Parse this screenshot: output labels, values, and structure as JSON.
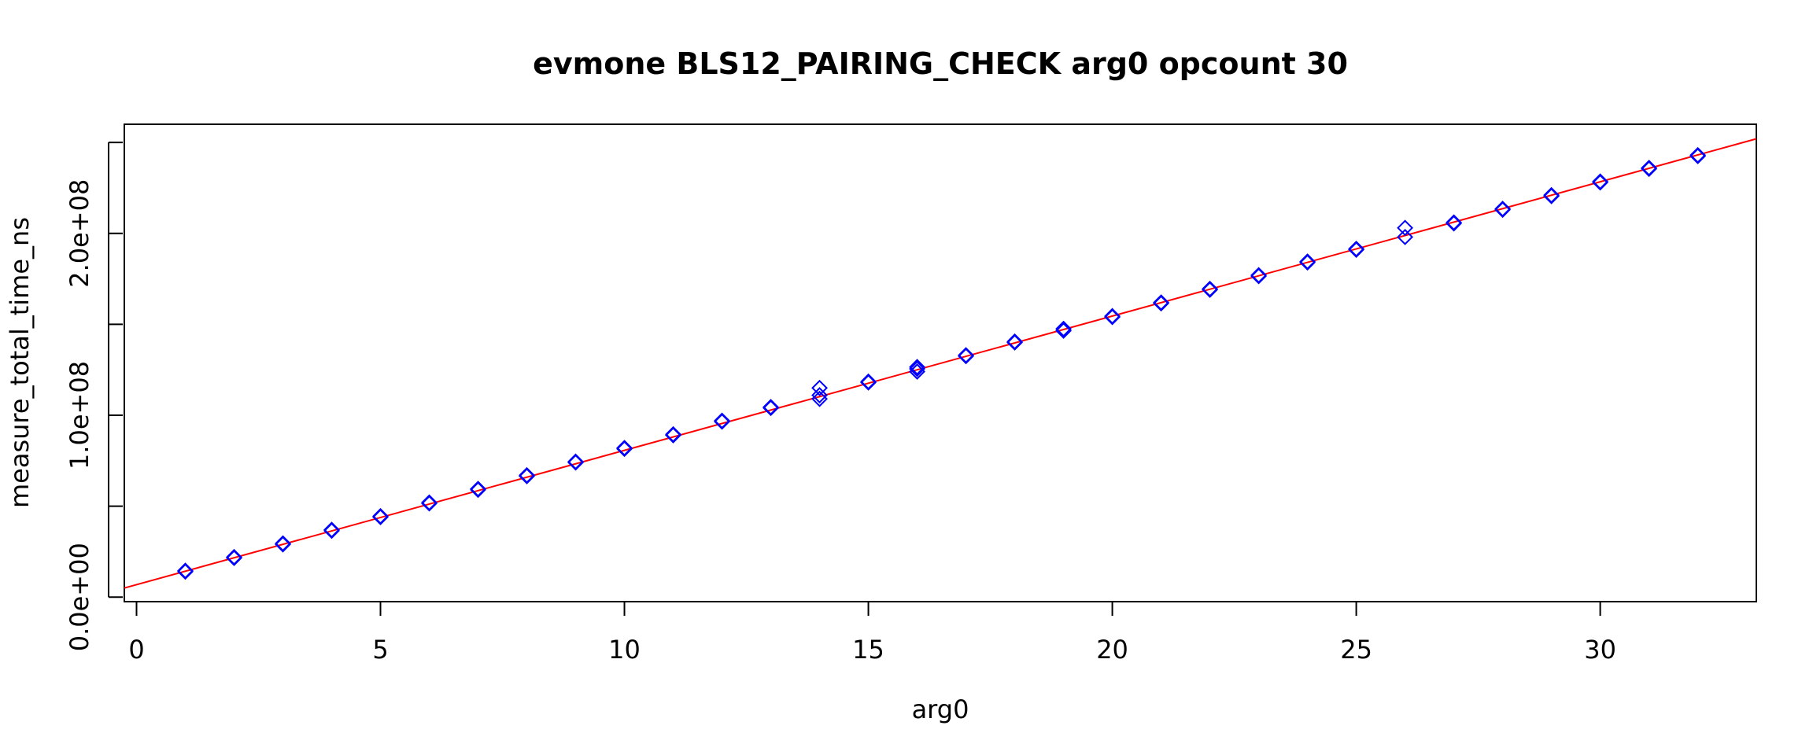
{
  "chart_data": {
    "type": "scatter",
    "title": "evmone BLS12_PAIRING_CHECK arg0 opcount 30",
    "xlabel": "arg0",
    "ylabel": "measure_total_time_ns",
    "xlim": [
      -0.25,
      33.2
    ],
    "ylim": [
      -2500000.0,
      260000000.0
    ],
    "x_ticks": [
      0,
      5,
      10,
      15,
      20,
      25,
      30
    ],
    "x_tick_labels": [
      "0",
      "5",
      "10",
      "15",
      "20",
      "25",
      "30"
    ],
    "y_ticks": [
      0,
      50000000,
      100000000,
      150000000,
      200000000,
      250000000
    ],
    "y_tick_labels": [
      "0.0e+00",
      "",
      "1.0e+08",
      "",
      "2.0e+08",
      ""
    ],
    "grid": false,
    "series": [
      {
        "marker": "diamond",
        "color": "#0000ff",
        "points": [
          [
            1,
            14500000
          ],
          [
            1,
            14000000
          ],
          [
            2,
            22000000
          ],
          [
            2,
            21500000
          ],
          [
            3,
            29500000
          ],
          [
            3,
            29000000
          ],
          [
            4,
            37000000
          ],
          [
            4,
            36500000
          ],
          [
            5,
            44500000
          ],
          [
            5,
            44000000
          ],
          [
            6,
            52000000
          ],
          [
            6,
            51500000
          ],
          [
            7,
            59500000
          ],
          [
            7,
            59000000
          ],
          [
            8,
            67000000
          ],
          [
            8,
            66500000
          ],
          [
            9,
            74500000
          ],
          [
            9,
            74000000
          ],
          [
            10,
            82000000
          ],
          [
            10,
            81500000
          ],
          [
            11,
            89500000
          ],
          [
            11,
            89000000
          ],
          [
            12,
            97000000
          ],
          [
            12,
            96500000
          ],
          [
            13,
            104500000
          ],
          [
            13,
            104000000
          ],
          [
            14,
            115000000
          ],
          [
            14,
            109000000
          ],
          [
            14,
            111000000
          ],
          [
            15,
            118500000
          ],
          [
            15,
            118000000
          ],
          [
            16,
            125500000
          ],
          [
            16,
            124000000
          ],
          [
            16,
            126500000
          ],
          [
            17,
            133000000
          ],
          [
            17,
            132500000
          ],
          [
            18,
            140500000
          ],
          [
            18,
            140000000
          ],
          [
            19,
            147500000
          ],
          [
            19,
            146500000
          ],
          [
            20,
            154500000
          ],
          [
            20,
            154000000
          ],
          [
            21,
            162000000
          ],
          [
            21,
            161500000
          ],
          [
            22,
            169500000
          ],
          [
            22,
            169000000
          ],
          [
            23,
            177000000
          ],
          [
            23,
            176500000
          ],
          [
            24,
            184500000
          ],
          [
            24,
            184000000
          ],
          [
            25,
            191500000
          ],
          [
            25,
            191000000
          ],
          [
            26,
            203000000
          ],
          [
            26,
            198000000
          ],
          [
            27,
            206000000
          ],
          [
            27,
            205500000
          ],
          [
            28,
            213500000
          ],
          [
            28,
            213000000
          ],
          [
            29,
            221000000
          ],
          [
            29,
            220500000
          ],
          [
            30,
            228500000
          ],
          [
            30,
            228000000
          ],
          [
            31,
            236000000
          ],
          [
            31,
            235500000
          ],
          [
            32,
            243000000
          ],
          [
            32,
            242500000
          ]
        ]
      }
    ],
    "fit_line": {
      "color": "#ff0000",
      "x": [
        -0.25,
        33.2
      ],
      "y": [
        5000000,
        252000000
      ]
    }
  }
}
